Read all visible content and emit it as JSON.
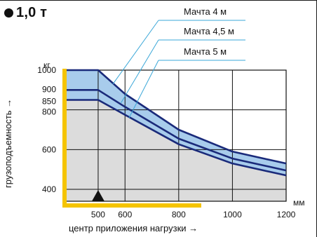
{
  "chart_data": {
    "type": "area",
    "title": "1,0 т",
    "xlabel": "центр приложения нагрузки →",
    "ylabel": "грузоподъемность →",
    "x_unit": "мм",
    "y_unit": "кг",
    "xlim": [
      380,
      1200
    ],
    "ylim": [
      340,
      1000
    ],
    "x_ticks": [
      "500",
      "600",
      "800",
      "1000",
      "1200"
    ],
    "y_ticks": [
      "400",
      "600",
      "800",
      "850",
      "900",
      "1000"
    ],
    "x_tick_values": [
      500,
      600,
      800,
      1000,
      1200
    ],
    "y_tick_values": [
      400,
      600,
      800,
      850,
      900,
      1000
    ],
    "series": [
      {
        "name": "Мачта 4 м",
        "x": [
          380,
          500,
          600,
          800,
          1000,
          1200
        ],
        "y": [
          1000,
          1000,
          880,
          700,
          590,
          530
        ]
      },
      {
        "name": "Мачта 4,5 м",
        "x": [
          380,
          500,
          600,
          800,
          1000,
          1200
        ],
        "y": [
          900,
          900,
          815,
          655,
          555,
          495
        ]
      },
      {
        "name": "Мачта 5 м",
        "x": [
          380,
          500,
          600,
          800,
          1000,
          1200
        ],
        "y": [
          850,
          850,
          775,
          627,
          530,
          470
        ]
      }
    ],
    "load_center_marker": 500,
    "grid": true,
    "colors": {
      "band_fill": "#a8ccec",
      "line": "#1a2a7a",
      "area_fill": "#dcdcdc",
      "fork": "#f5c400",
      "leader": "#3aa7d8"
    }
  }
}
